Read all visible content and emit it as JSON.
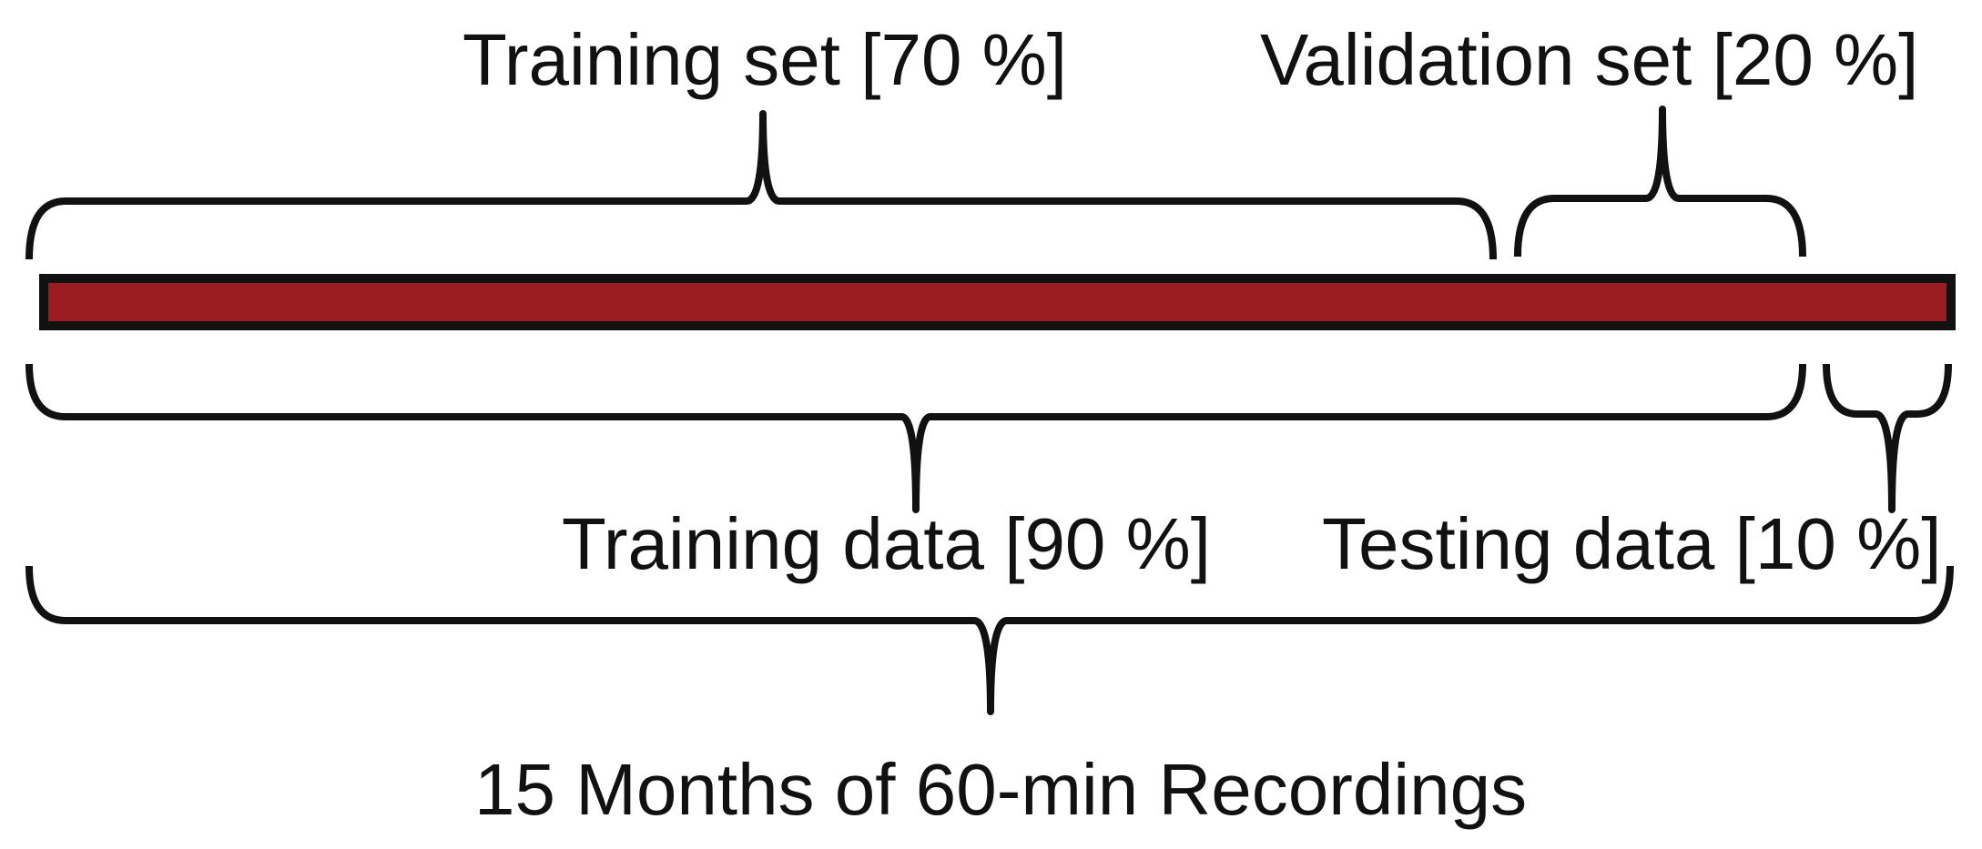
{
  "labels": {
    "training_set": "Training set [70 %]",
    "validation_set": "Validation set [20 %]",
    "training_data": "Training data [90 %]",
    "testing_data": "Testing data [10 %]",
    "total": "15 Months of 60-min Recordings"
  },
  "splits": {
    "training_set_percent": 70,
    "validation_set_percent": 20,
    "training_data_percent": 90,
    "testing_data_percent": 10
  },
  "colors": {
    "timeline_fill": "#9a1b20",
    "stroke": "#111111",
    "text": "#111111"
  }
}
